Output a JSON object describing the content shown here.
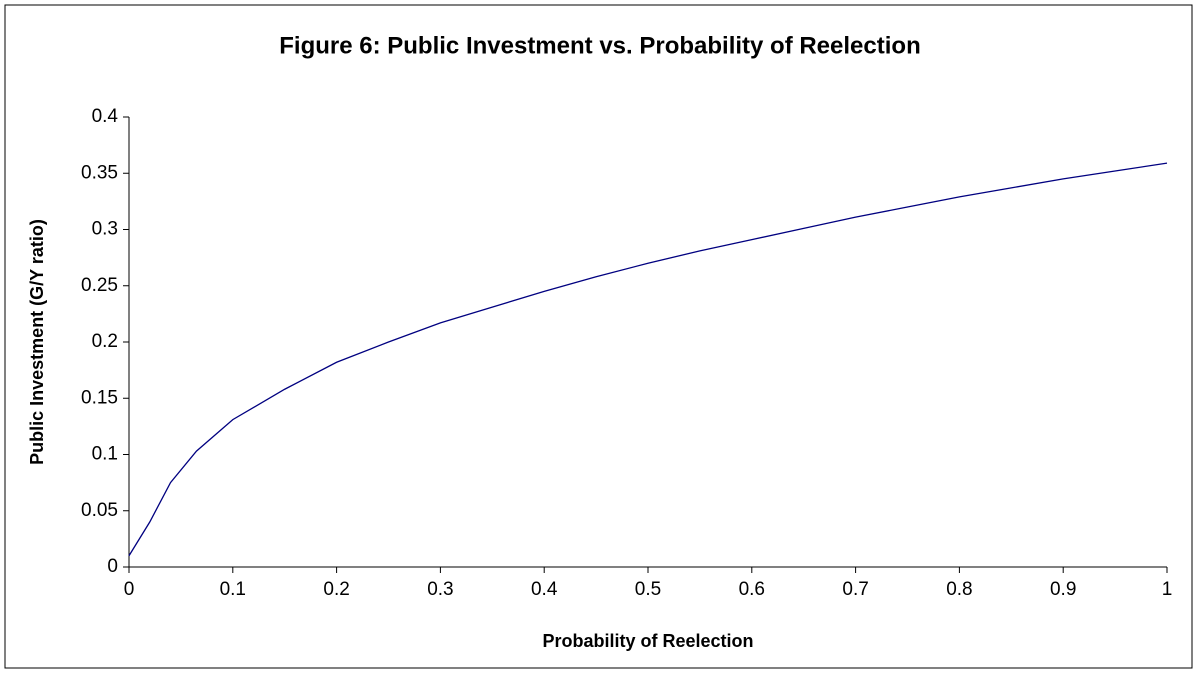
{
  "chart_data": {
    "type": "line",
    "title": "Figure 6: Public Investment vs. Probability of Reelection",
    "x_label": "Probability of Reelection",
    "y_label": "Public Investment (G/Y ratio)",
    "x": [
      0,
      0.02,
      0.04,
      0.065,
      0.09,
      0.1,
      0.15,
      0.2,
      0.25,
      0.3,
      0.35,
      0.4,
      0.45,
      0.5,
      0.55,
      0.6,
      0.65,
      0.7,
      0.75,
      0.8,
      0.85,
      0.9,
      0.95,
      1
    ],
    "series": [
      {
        "name": "Public Investment",
        "color": "#000080",
        "values": [
          0.01,
          0.04,
          0.075,
          0.103,
          0.123,
          0.131,
          0.158,
          0.182,
          0.2,
          0.217,
          0.231,
          0.245,
          0.258,
          0.27,
          0.281,
          0.291,
          0.301,
          0.311,
          0.32,
          0.329,
          0.337,
          0.345,
          0.352,
          0.359
        ]
      }
    ],
    "xlim": [
      0,
      1
    ],
    "xticks": [
      0,
      0.1,
      0.2,
      0.3,
      0.4,
      0.5,
      0.6,
      0.7,
      0.8,
      0.9,
      1
    ],
    "ylim": [
      0,
      0.4
    ],
    "yticks": [
      0,
      0.05,
      0.1,
      0.15,
      0.2,
      0.25,
      0.3,
      0.35,
      0.4
    ],
    "grid": false
  }
}
